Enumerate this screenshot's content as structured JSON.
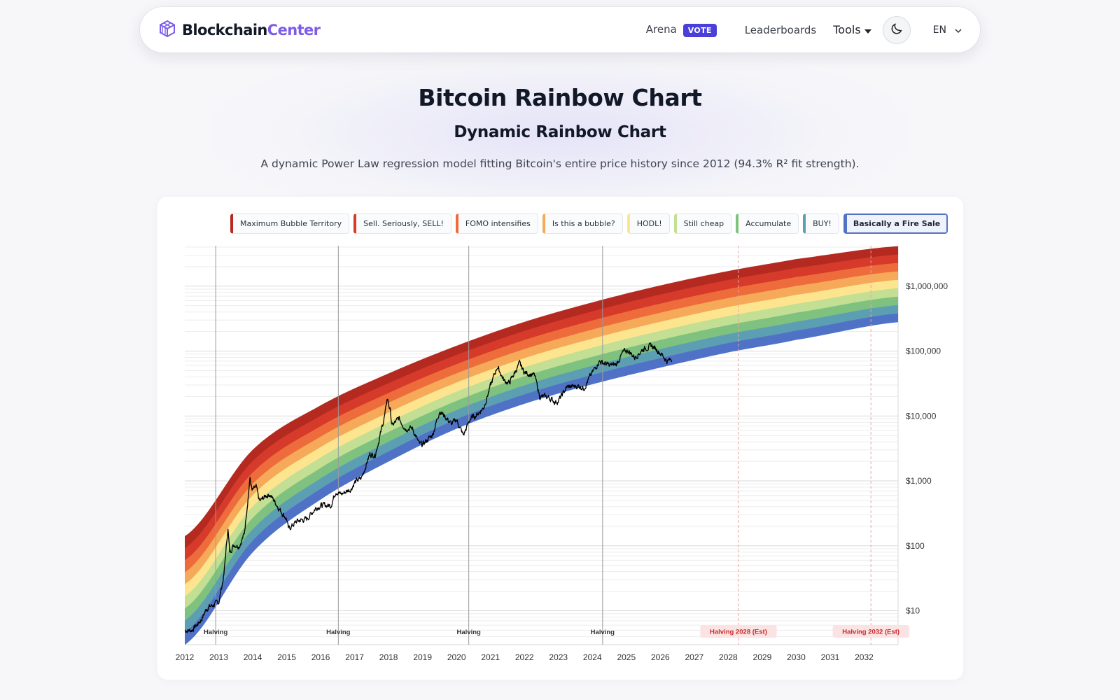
{
  "brand": {
    "part1": "Blockchain",
    "part2": "Center"
  },
  "nav": {
    "arena": "Arena",
    "vote_badge": "VOTE",
    "leaderboards": "Leaderboards",
    "tools": "Tools",
    "language": "EN"
  },
  "heading": {
    "title": "Bitcoin Rainbow Chart",
    "subtitle": "Dynamic Rainbow Chart",
    "description": "A dynamic Power Law regression model fitting Bitcoin's entire price history since 2012 (94.3% R² fit strength)."
  },
  "colors": {
    "accent": "#7c5ce8",
    "vote": "#4a3fd8",
    "bands": [
      "#b52a20",
      "#d53a2a",
      "#ee6b3b",
      "#f5a959",
      "#fde58f",
      "#c2df93",
      "#7fc27f",
      "#5c9fb2",
      "#4f72c6"
    ]
  },
  "legend": [
    {
      "label": "Maximum Bubble Territory",
      "color": "#b52a20"
    },
    {
      "label": "Sell. Seriously, SELL!",
      "color": "#d53a2a"
    },
    {
      "label": "FOMO intensifies",
      "color": "#ee6b3b"
    },
    {
      "label": "Is this a bubble?",
      "color": "#f5a959"
    },
    {
      "label": "HODL!",
      "color": "#fde58f"
    },
    {
      "label": "Still cheap",
      "color": "#c2df93"
    },
    {
      "label": "Accumulate",
      "color": "#7fc27f"
    },
    {
      "label": "BUY!",
      "color": "#5c9fb2"
    },
    {
      "label": "Basically a Fire Sale",
      "color": "#4f72c6",
      "active": true
    }
  ],
  "chart_data": {
    "type": "area",
    "yscale": "log",
    "xlim": [
      2012,
      2033.0
    ],
    "ylim": [
      3,
      4200000
    ],
    "x_ticks": [
      "2012",
      "2013",
      "2014",
      "2015",
      "2016",
      "2017",
      "2018",
      "2019",
      "2020",
      "2021",
      "2022",
      "2023",
      "2024",
      "2025",
      "2026",
      "2027",
      "2028",
      "2029",
      "2030",
      "2031",
      "2032"
    ],
    "y_ticks": [
      {
        "value": 10,
        "label": "$10"
      },
      {
        "value": 100,
        "label": "$100"
      },
      {
        "value": 1000,
        "label": "$1,000"
      },
      {
        "value": 10000,
        "label": "$10,000"
      },
      {
        "value": 100000,
        "label": "$100,000"
      },
      {
        "value": 1000000,
        "label": "$1,000,000"
      }
    ],
    "bands": {
      "x": [
        2012.0,
        2014.0,
        2016.0,
        2018.0,
        2020.0,
        2022.0,
        2024.0,
        2026.0,
        2028.0,
        2030.0,
        2033.0
      ],
      "upper": [
        140,
        3000,
        14500,
        45000,
        120000,
        280000,
        560000,
        1020000,
        1700000,
        2600000,
        4100000
      ],
      "lower": [
        3,
        80,
        520,
        2000,
        6400,
        15500,
        31000,
        56000,
        96000,
        150000,
        280000
      ]
    },
    "halvings": [
      {
        "year": 2012.91,
        "label": "Halving"
      },
      {
        "year": 2016.52,
        "label": "Halving"
      },
      {
        "year": 2020.36,
        "label": "Halving"
      },
      {
        "year": 2024.3,
        "label": "Halving"
      },
      {
        "year": 2028.3,
        "label": "Halving 2028 (Est)",
        "estimated": true
      },
      {
        "year": 2032.2,
        "label": "Halving 2032 (Est)",
        "estimated": true
      }
    ],
    "price_series": {
      "name": "",
      "points": [
        [
          2012.0,
          5
        ],
        [
          2012.2,
          5
        ],
        [
          2012.35,
          6
        ],
        [
          2012.5,
          7.5
        ],
        [
          2012.65,
          11
        ],
        [
          2012.8,
          12
        ],
        [
          2013.0,
          13.5
        ],
        [
          2013.15,
          35
        ],
        [
          2013.27,
          190
        ],
        [
          2013.32,
          80
        ],
        [
          2013.45,
          105
        ],
        [
          2013.6,
          100
        ],
        [
          2013.75,
          150
        ],
        [
          2013.92,
          1100
        ],
        [
          2013.98,
          700
        ],
        [
          2014.1,
          800
        ],
        [
          2014.2,
          480
        ],
        [
          2014.4,
          600
        ],
        [
          2014.5,
          620
        ],
        [
          2014.65,
          480
        ],
        [
          2014.8,
          360
        ],
        [
          2015.0,
          260
        ],
        [
          2015.05,
          180
        ],
        [
          2015.3,
          240
        ],
        [
          2015.6,
          260
        ],
        [
          2015.85,
          380
        ],
        [
          2016.0,
          420
        ],
        [
          2016.3,
          420
        ],
        [
          2016.45,
          700
        ],
        [
          2016.6,
          620
        ],
        [
          2016.9,
          760
        ],
        [
          2017.0,
          950
        ],
        [
          2017.2,
          1100
        ],
        [
          2017.45,
          2600
        ],
        [
          2017.6,
          2500
        ],
        [
          2017.75,
          5000
        ],
        [
          2017.9,
          11000
        ],
        [
          2017.96,
          19000
        ],
        [
          2018.05,
          12000
        ],
        [
          2018.1,
          7000
        ],
        [
          2018.3,
          9200
        ],
        [
          2018.5,
          6400
        ],
        [
          2018.7,
          6500
        ],
        [
          2018.9,
          3700
        ],
        [
          2019.0,
          3600
        ],
        [
          2019.3,
          5200
        ],
        [
          2019.5,
          12000
        ],
        [
          2019.65,
          10000
        ],
        [
          2019.85,
          7500
        ],
        [
          2020.0,
          8800
        ],
        [
          2020.2,
          5000
        ],
        [
          2020.4,
          9000
        ],
        [
          2020.6,
          10500
        ],
        [
          2020.8,
          13500
        ],
        [
          2021.0,
          29000
        ],
        [
          2021.2,
          58000
        ],
        [
          2021.4,
          35000
        ],
        [
          2021.55,
          32000
        ],
        [
          2021.85,
          64000
        ],
        [
          2022.0,
          47000
        ],
        [
          2022.3,
          42000
        ],
        [
          2022.45,
          20000
        ],
        [
          2022.7,
          19500
        ],
        [
          2022.9,
          16500
        ],
        [
          2023.0,
          17000
        ],
        [
          2023.25,
          28000
        ],
        [
          2023.6,
          29000
        ],
        [
          2023.75,
          27000
        ],
        [
          2023.95,
          42000
        ],
        [
          2024.2,
          70000
        ],
        [
          2024.5,
          60000
        ],
        [
          2024.7,
          62000
        ],
        [
          2024.9,
          95000
        ],
        [
          2025.05,
          102000
        ],
        [
          2025.25,
          80000
        ],
        [
          2025.5,
          108000
        ],
        [
          2025.75,
          120000
        ],
        [
          2025.9,
          105000
        ],
        [
          2026.05,
          88000
        ],
        [
          2026.2,
          70000
        ],
        [
          2026.35,
          75000
        ]
      ]
    }
  }
}
